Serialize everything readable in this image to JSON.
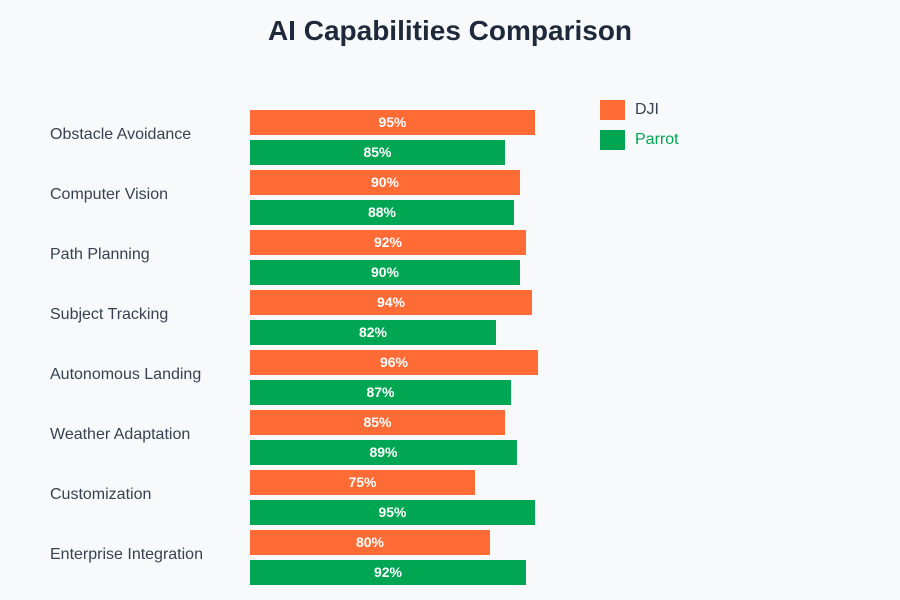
{
  "chart_data": {
    "type": "bar",
    "orientation": "horizontal",
    "title": "AI Capabilities Comparison",
    "categories": [
      "Obstacle Avoidance",
      "Computer Vision",
      "Path Planning",
      "Subject Tracking",
      "Autonomous Landing",
      "Weather Adaptation",
      "Customization",
      "Enterprise Integration"
    ],
    "series": [
      {
        "name": "DJI",
        "color": "#ff6b35",
        "values": [
          95,
          90,
          92,
          94,
          96,
          85,
          75,
          80
        ]
      },
      {
        "name": "Parrot",
        "color": "#00a651",
        "values": [
          85,
          88,
          90,
          82,
          87,
          89,
          95,
          92
        ]
      }
    ],
    "value_suffix": "%",
    "xlim": [
      0,
      100
    ],
    "grid": false,
    "legend_position": "top-right",
    "colors": {
      "title": "#1e293b",
      "category_text": "#374151",
      "bar_text": "#ffffff",
      "background": "#f8f9fb"
    }
  }
}
